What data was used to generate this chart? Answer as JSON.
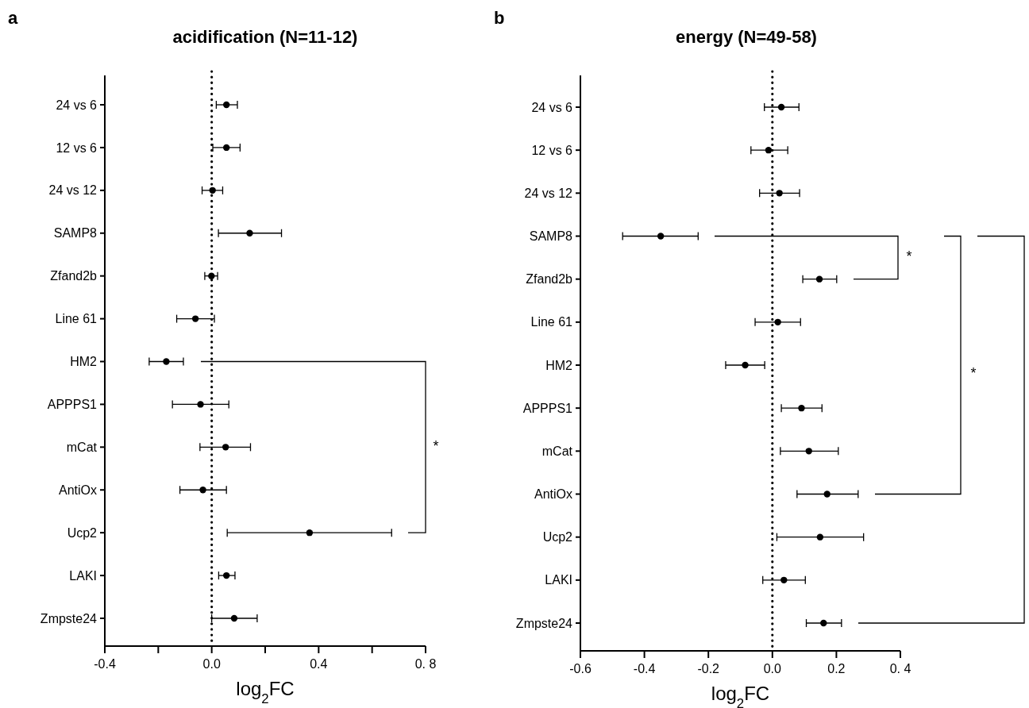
{
  "chart_data": [
    {
      "type": "scatter",
      "orientation": "horizontal",
      "title": "acidification (N=11-12)",
      "xlabel": "log$_{2}$FC",
      "annotations": [
        "a",
        "*"
      ],
      "marker": "circle",
      "grid": false,
      "categories": [
        "24 vs 6",
        "12 vs 6",
        "24 vs 12",
        "SAMP8",
        "Zfand2b",
        "Line 61",
        "HM2",
        "APPPS1",
        "mCat",
        "AntiOx",
        "Ucp2",
        "LAKI",
        "Zmpste24"
      ],
      "series": [
        {
          "color": "#000000",
          "values": [
            0.055,
            0.055,
            0.003,
            0.142,
            -0.001,
            -0.061,
            -0.17,
            -0.042,
            0.052,
            -0.033,
            0.366,
            0.055,
            0.084
          ],
          "errors": [
            [
              0.017,
              0.096
            ],
            [
              0.004,
              0.106
            ],
            [
              -0.036,
              0.041
            ],
            [
              0.025,
              0.261
            ],
            [
              -0.026,
              0.022
            ],
            [
              -0.131,
              0.01
            ],
            [
              -0.234,
              -0.106
            ],
            [
              -0.147,
              0.064
            ],
            [
              -0.044,
              0.145
            ],
            [
              -0.119,
              0.055
            ],
            [
              0.058,
              0.673
            ],
            [
              0.026,
              0.087
            ],
            [
              0.0,
              0.17
            ]
          ]
        }
      ],
      "xlim": [
        -0.4,
        0.8
      ],
      "xticks": [
        -0.4,
        {
          "value": -0.2,
          "label": null
        },
        {
          "value": 0,
          "label": "0.0"
        },
        0.4,
        {
          "value": 0.2,
          "label": null
        },
        {
          "value": 0.6,
          "label": null
        },
        {
          "value": 0.8,
          "label": "0. 8"
        }
      ],
      "ref_lines": [
        {
          "axis": "x",
          "value": 0,
          "label": null,
          "line_style": "dotted",
          "color": "#000000"
        }
      ]
    },
    {
      "type": "scatter",
      "orientation": "horizontal",
      "title": "energy (N=49-58)",
      "xlabel": "log$_{2}$FC",
      "annotations": [
        "b",
        "*",
        "*"
      ],
      "marker": "circle",
      "grid": false,
      "categories": [
        "24 vs 6",
        "12 vs 6",
        "24 vs 12",
        "SAMP8",
        "Zfand2b",
        "Line 61",
        "HM2",
        "APPPS1",
        "mCat",
        "AntiOx",
        "Ucp2",
        "LAKI",
        "Zmpste24"
      ],
      "series": [
        {
          "color": "#000000",
          "values": [
            0.028,
            -0.012,
            0.022,
            -0.349,
            0.147,
            0.017,
            -0.085,
            0.091,
            0.114,
            0.171,
            0.149,
            0.036,
            0.16
          ],
          "errors": [
            [
              -0.025,
              0.083
            ],
            [
              -0.067,
              0.048
            ],
            [
              -0.04,
              0.085
            ],
            [
              -0.468,
              -0.232
            ],
            [
              0.095,
              0.201
            ],
            [
              -0.054,
              0.088
            ],
            [
              -0.146,
              -0.024
            ],
            [
              0.028,
              0.155
            ],
            [
              0.025,
              0.206
            ],
            [
              0.077,
              0.268
            ],
            [
              0.014,
              0.285
            ],
            [
              -0.03,
              0.103
            ],
            [
              0.106,
              0.216
            ]
          ]
        }
      ],
      "xlim": [
        -0.6,
        0.4
      ],
      "xticks": [
        -0.6,
        -0.4,
        -0.2,
        {
          "value": 0,
          "label": "0.0"
        },
        0.2,
        {
          "value": 0.4,
          "label": "0. 4"
        }
      ],
      "ref_lines": [
        {
          "axis": "x",
          "value": 0,
          "label": null,
          "line_style": "dotted",
          "color": "#000000"
        }
      ]
    }
  ]
}
